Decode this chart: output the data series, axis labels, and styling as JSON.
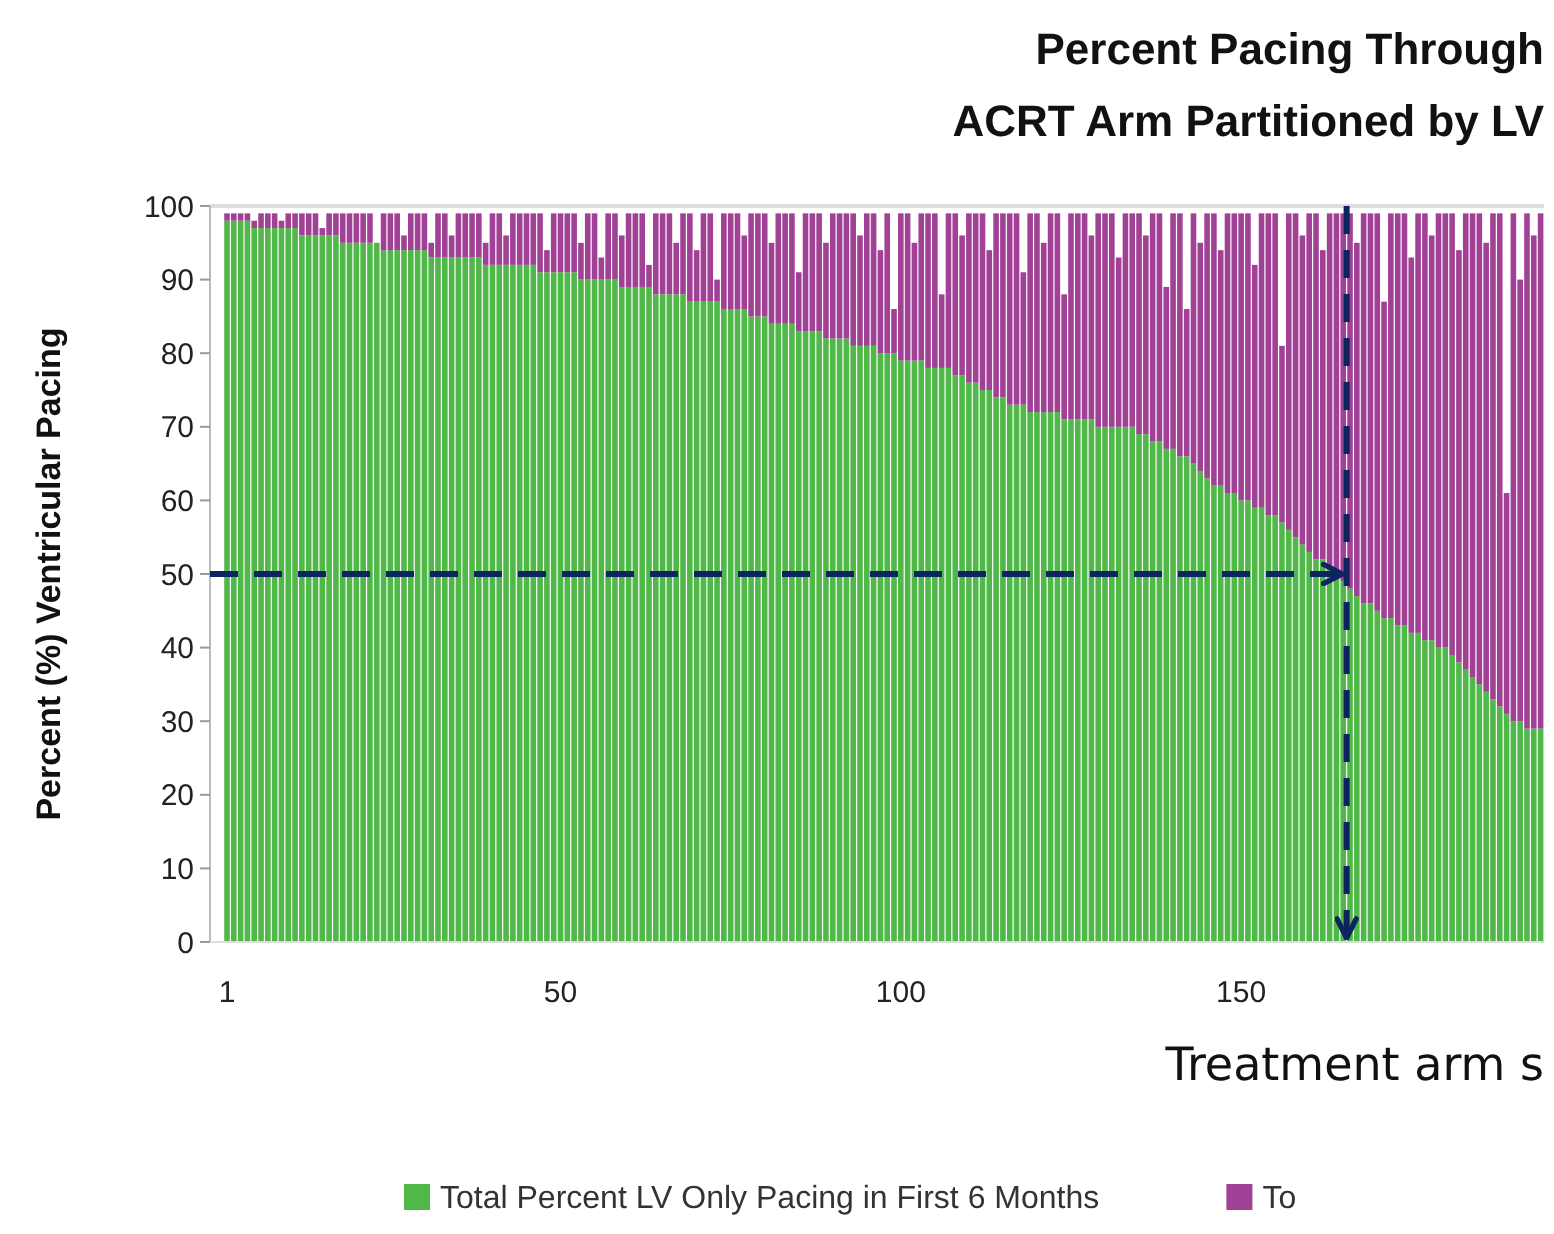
{
  "chart_data": {
    "type": "bar",
    "stacked": true,
    "title": "Percent Pacing Through",
    "subtitle": "ACRT Arm Partitioned by LV",
    "xlabel": "Treatment arm s",
    "ylabel": "Percent (%) Ventricular Pacing",
    "x": [
      1,
      2,
      3,
      4,
      5,
      6,
      7,
      8,
      9,
      10,
      11,
      12,
      13,
      14,
      15,
      16,
      17,
      18,
      19,
      20,
      21,
      22,
      23,
      24,
      25,
      26,
      27,
      28,
      29,
      30,
      31,
      32,
      33,
      34,
      35,
      36,
      37,
      38,
      39,
      40,
      41,
      42,
      43,
      44,
      45,
      46,
      47,
      48,
      49,
      50,
      51,
      52,
      53,
      54,
      55,
      56,
      57,
      58,
      59,
      60,
      61,
      62,
      63,
      64,
      65,
      66,
      67,
      68,
      69,
      70,
      71,
      72,
      73,
      74,
      75,
      76,
      77,
      78,
      79,
      80,
      81,
      82,
      83,
      84,
      85,
      86,
      87,
      88,
      89,
      90,
      91,
      92,
      93,
      94,
      95,
      96,
      97,
      98,
      99,
      100,
      101,
      102,
      103,
      104,
      105,
      106,
      107,
      108,
      109,
      110,
      111,
      112,
      113,
      114,
      115,
      116,
      117,
      118,
      119,
      120,
      121,
      122,
      123,
      124,
      125,
      126,
      127,
      128,
      129,
      130,
      131,
      132,
      133,
      134,
      135,
      136,
      137,
      138,
      139,
      140,
      141,
      142,
      143,
      144,
      145,
      146,
      147,
      148,
      149,
      150,
      151,
      152,
      153,
      154,
      155,
      156,
      157,
      158,
      159,
      160,
      161,
      162,
      163,
      164,
      165,
      166,
      167,
      168,
      169,
      170,
      171,
      172,
      173,
      174,
      175,
      176,
      177,
      178,
      179,
      180,
      181,
      182,
      183,
      184,
      185,
      186,
      187,
      188,
      189,
      190,
      191,
      192,
      193,
      194
    ],
    "xlim": [
      -1.5,
      194.5
    ],
    "xticks": [
      1,
      50,
      100,
      150
    ],
    "ylim": [
      0,
      100
    ],
    "yticks": [
      0,
      10,
      20,
      30,
      40,
      50,
      60,
      70,
      80,
      90,
      100
    ],
    "legend": "bottom",
    "series": [
      {
        "name": "Total Percent LV Only Pacing in First 6 Months",
        "color": "#50b848",
        "values": [
          98,
          98,
          98,
          98,
          97,
          97,
          97,
          97,
          97,
          97,
          97,
          96,
          96,
          96,
          96,
          96,
          96,
          95,
          95,
          95,
          95,
          95,
          95,
          94,
          94,
          94,
          94,
          94,
          94,
          94,
          93,
          93,
          93,
          93,
          93,
          93,
          93,
          93,
          92,
          92,
          92,
          92,
          92,
          92,
          92,
          92,
          91,
          91,
          91,
          91,
          91,
          91,
          90,
          90,
          90,
          90,
          90,
          90,
          89,
          89,
          89,
          89,
          89,
          88,
          88,
          88,
          88,
          88,
          87,
          87,
          87,
          87,
          87,
          86,
          86,
          86,
          86,
          85,
          85,
          85,
          84,
          84,
          84,
          84,
          83,
          83,
          83,
          83,
          82,
          82,
          82,
          82,
          81,
          81,
          81,
          81,
          80,
          80,
          80,
          79,
          79,
          79,
          79,
          78,
          78,
          78,
          78,
          77,
          77,
          76,
          76,
          75,
          75,
          74,
          74,
          73,
          73,
          73,
          72,
          72,
          72,
          72,
          72,
          71,
          71,
          71,
          71,
          71,
          70,
          70,
          70,
          70,
          70,
          70,
          69,
          69,
          68,
          68,
          67,
          67,
          66,
          66,
          65,
          64,
          63,
          62,
          62,
          61,
          61,
          60,
          60,
          59,
          59,
          58,
          58,
          57,
          56,
          55,
          54,
          53,
          52,
          52,
          51,
          50,
          49,
          48,
          47,
          46,
          46,
          45,
          44,
          44,
          43,
          43,
          42,
          42,
          41,
          41,
          40,
          40,
          39,
          38,
          37,
          36,
          35,
          34,
          33,
          32,
          31,
          30,
          30,
          29,
          29,
          29
        ]
      },
      {
        "name": "To",
        "color": "#a14196",
        "values": [
          1,
          1,
          1,
          1,
          1,
          2,
          2,
          2,
          1,
          2,
          2,
          3,
          3,
          3,
          1,
          3,
          3,
          4,
          4,
          4,
          4,
          4,
          0,
          5,
          5,
          5,
          2,
          5,
          5,
          5,
          2,
          6,
          6,
          3,
          6,
          6,
          6,
          6,
          3,
          7,
          7,
          4,
          7,
          7,
          7,
          7,
          8,
          3,
          8,
          8,
          8,
          8,
          5,
          9,
          9,
          3,
          9,
          9,
          7,
          10,
          10,
          10,
          3,
          11,
          11,
          11,
          7,
          11,
          12,
          7,
          12,
          12,
          3,
          13,
          13,
          13,
          10,
          14,
          14,
          14,
          11,
          15,
          15,
          15,
          8,
          16,
          16,
          16,
          13,
          17,
          17,
          17,
          18,
          15,
          18,
          18,
          14,
          19,
          6,
          20,
          20,
          16,
          20,
          21,
          21,
          10,
          21,
          22,
          19,
          23,
          23,
          24,
          19,
          25,
          25,
          26,
          26,
          18,
          27,
          27,
          23,
          27,
          27,
          17,
          28,
          28,
          28,
          25,
          29,
          29,
          29,
          23,
          29,
          29,
          30,
          27,
          31,
          31,
          22,
          32,
          33,
          20,
          34,
          31,
          36,
          37,
          32,
          38,
          38,
          39,
          39,
          33,
          40,
          41,
          41,
          24,
          43,
          44,
          42,
          46,
          47,
          42,
          48,
          49,
          50,
          51,
          48,
          53,
          53,
          54,
          43,
          55,
          56,
          56,
          51,
          57,
          58,
          55,
          59,
          59,
          60,
          56,
          62,
          63,
          64,
          61,
          66,
          67,
          30,
          69,
          60,
          70,
          67,
          70
        ]
      }
    ],
    "ref_lines": [
      {
        "axis": "x",
        "value": 165.5,
        "color": "#0d2460",
        "line_style": "dashed"
      },
      {
        "axis": "y",
        "value": 50,
        "color": "#0d2460",
        "line_style": "dashed"
      }
    ]
  }
}
